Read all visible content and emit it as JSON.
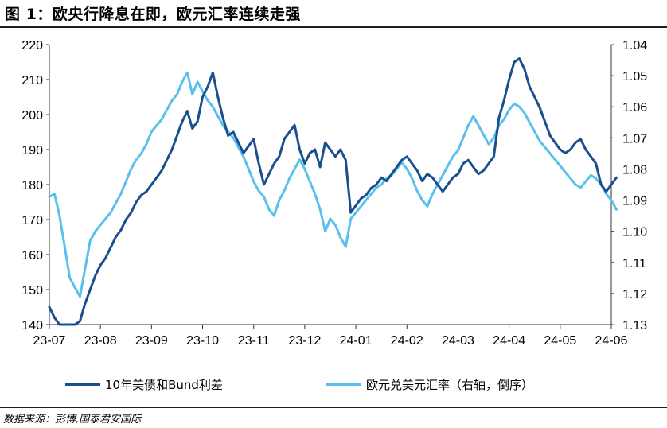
{
  "title": "图 1：欧央行降息在即，欧元汇率连续走强",
  "source": "数据来源：彭博,国泰君安国际",
  "chart_data": {
    "type": "line",
    "x_categories": [
      "23-07",
      "23-08",
      "23-09",
      "23-10",
      "23-11",
      "23-12",
      "24-01",
      "24-02",
      "24-03",
      "24-04",
      "24-05",
      "24-06"
    ],
    "left_axis": {
      "ylim": [
        140,
        220
      ],
      "ticks": [
        "140",
        "150",
        "160",
        "170",
        "180",
        "190",
        "200",
        "210",
        "220"
      ]
    },
    "right_axis": {
      "ylim": [
        1.13,
        1.04
      ],
      "inverted": true,
      "ticks": [
        "1.04",
        "1.05",
        "1.06",
        "1.07",
        "1.08",
        "1.09",
        "1.10",
        "1.11",
        "1.12",
        "1.13"
      ]
    },
    "grid": false,
    "legend_position": "bottom",
    "series": [
      {
        "name": "10年美债和Bund利差",
        "axis": "left",
        "color": "#1a4f8f",
        "x": [
          0.0,
          0.1,
          0.2,
          0.3,
          0.4,
          0.5,
          0.6,
          0.7,
          0.8,
          0.9,
          1.0,
          1.1,
          1.2,
          1.3,
          1.4,
          1.5,
          1.6,
          1.7,
          1.8,
          1.9,
          2.0,
          2.1,
          2.2,
          2.3,
          2.4,
          2.5,
          2.6,
          2.7,
          2.8,
          2.9,
          3.0,
          3.1,
          3.2,
          3.3,
          3.4,
          3.5,
          3.6,
          3.7,
          3.8,
          3.9,
          4.0,
          4.1,
          4.2,
          4.3,
          4.4,
          4.5,
          4.6,
          4.7,
          4.8,
          4.9,
          5.0,
          5.1,
          5.2,
          5.3,
          5.4,
          5.5,
          5.6,
          5.7,
          5.8,
          5.9,
          6.0,
          6.1,
          6.2,
          6.3,
          6.4,
          6.5,
          6.6,
          6.7,
          6.8,
          6.9,
          7.0,
          7.1,
          7.2,
          7.3,
          7.4,
          7.5,
          7.6,
          7.7,
          7.8,
          7.9,
          8.0,
          8.1,
          8.2,
          8.3,
          8.4,
          8.5,
          8.6,
          8.7,
          8.8,
          8.9,
          9.0,
          9.1,
          9.2,
          9.3,
          9.4,
          9.5,
          9.6,
          9.7,
          9.8,
          9.9,
          10.0,
          10.1,
          10.2,
          10.3,
          10.4,
          10.5,
          10.6,
          10.7,
          10.8,
          10.9,
          11.0,
          11.1
        ],
        "values": [
          145,
          142,
          139,
          137,
          136,
          138,
          141,
          146,
          150,
          154,
          157,
          159,
          162,
          165,
          167,
          170,
          172,
          175,
          177,
          178,
          180,
          182,
          184,
          187,
          190,
          194,
          198,
          201,
          196,
          198,
          205,
          208,
          212,
          205,
          199,
          194,
          195,
          192,
          189,
          191,
          193,
          186,
          180,
          183,
          186,
          188,
          193,
          195,
          197,
          190,
          186,
          189,
          190,
          185,
          192,
          190,
          188,
          190,
          187,
          172,
          174,
          176,
          177,
          179,
          180,
          182,
          181,
          183,
          185,
          187,
          188,
          186,
          184,
          181,
          183,
          182,
          180,
          178,
          180,
          182,
          183,
          186,
          187,
          185,
          183,
          184,
          186,
          188,
          199,
          204,
          210,
          215,
          216,
          213,
          208,
          205,
          202,
          198,
          194,
          192,
          190,
          189,
          190,
          192,
          193,
          190,
          188,
          186,
          180,
          178,
          180,
          182
        ]
      },
      {
        "name": "欧元兑美元汇率（右轴，倒序）",
        "axis": "right",
        "color": "#5bc0eb",
        "x": [
          0.0,
          0.1,
          0.2,
          0.3,
          0.4,
          0.5,
          0.6,
          0.7,
          0.8,
          0.9,
          1.0,
          1.1,
          1.2,
          1.3,
          1.4,
          1.5,
          1.6,
          1.7,
          1.8,
          1.9,
          2.0,
          2.1,
          2.2,
          2.3,
          2.4,
          2.5,
          2.6,
          2.7,
          2.8,
          2.9,
          3.0,
          3.1,
          3.2,
          3.3,
          3.4,
          3.5,
          3.6,
          3.7,
          3.8,
          3.9,
          4.0,
          4.1,
          4.2,
          4.3,
          4.4,
          4.5,
          4.6,
          4.7,
          4.8,
          4.9,
          5.0,
          5.1,
          5.2,
          5.3,
          5.4,
          5.5,
          5.6,
          5.7,
          5.8,
          5.9,
          6.0,
          6.1,
          6.2,
          6.3,
          6.4,
          6.5,
          6.6,
          6.7,
          6.8,
          6.9,
          7.0,
          7.1,
          7.2,
          7.3,
          7.4,
          7.5,
          7.6,
          7.7,
          7.8,
          7.9,
          8.0,
          8.1,
          8.2,
          8.3,
          8.4,
          8.5,
          8.6,
          8.7,
          8.8,
          8.9,
          9.0,
          9.1,
          9.2,
          9.3,
          9.4,
          9.5,
          9.6,
          9.7,
          9.8,
          9.9,
          10.0,
          10.1,
          10.2,
          10.3,
          10.4,
          10.5,
          10.6,
          10.7,
          10.8,
          10.9,
          11.0,
          11.1
        ],
        "values": [
          1.089,
          1.088,
          1.095,
          1.105,
          1.115,
          1.118,
          1.121,
          1.112,
          1.103,
          1.1,
          1.098,
          1.096,
          1.094,
          1.091,
          1.088,
          1.084,
          1.08,
          1.077,
          1.075,
          1.072,
          1.068,
          1.066,
          1.064,
          1.061,
          1.058,
          1.056,
          1.052,
          1.049,
          1.056,
          1.052,
          1.055,
          1.058,
          1.06,
          1.063,
          1.066,
          1.068,
          1.07,
          1.073,
          1.076,
          1.08,
          1.084,
          1.087,
          1.089,
          1.093,
          1.095,
          1.09,
          1.087,
          1.083,
          1.08,
          1.077,
          1.08,
          1.084,
          1.088,
          1.093,
          1.1,
          1.096,
          1.098,
          1.102,
          1.105,
          1.096,
          1.094,
          1.092,
          1.09,
          1.088,
          1.086,
          1.085,
          1.083,
          1.082,
          1.08,
          1.078,
          1.08,
          1.083,
          1.087,
          1.09,
          1.092,
          1.088,
          1.085,
          1.082,
          1.079,
          1.076,
          1.074,
          1.07,
          1.066,
          1.063,
          1.066,
          1.069,
          1.072,
          1.07,
          1.066,
          1.064,
          1.061,
          1.059,
          1.06,
          1.062,
          1.065,
          1.068,
          1.071,
          1.073,
          1.075,
          1.077,
          1.079,
          1.081,
          1.083,
          1.085,
          1.086,
          1.084,
          1.082,
          1.083,
          1.085,
          1.088,
          1.09,
          1.093
        ]
      }
    ]
  }
}
